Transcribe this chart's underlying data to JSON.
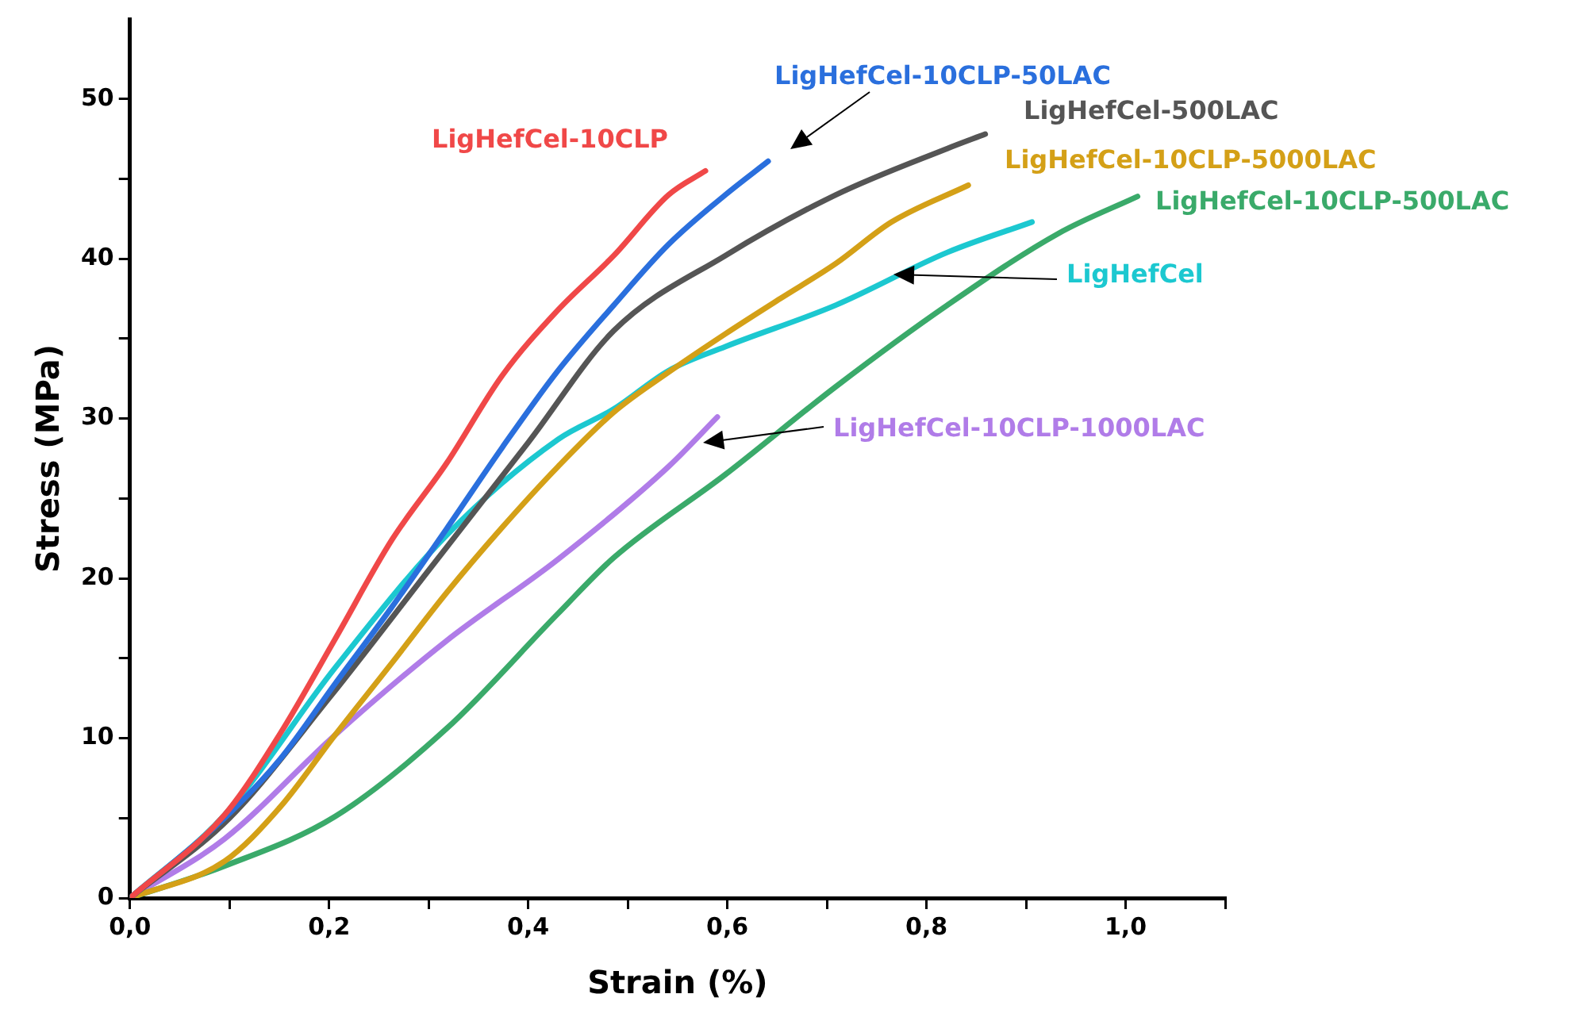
{
  "chart_data": {
    "type": "line",
    "xlabel": "Strain (%)",
    "ylabel": "Stress (MPa)",
    "xlim": [
      0,
      1.1
    ],
    "ylim": [
      0,
      55
    ],
    "xticks": [
      {
        "value": 0,
        "label": "0,0"
      },
      {
        "value": 0.1,
        "label": null
      },
      {
        "value": 0.2,
        "label": "0,2"
      },
      {
        "value": 0.3,
        "label": null
      },
      {
        "value": 0.4,
        "label": "0,4"
      },
      {
        "value": 0.5,
        "label": null
      },
      {
        "value": 0.6,
        "label": "0,6"
      },
      {
        "value": 0.7,
        "label": null
      },
      {
        "value": 0.8,
        "label": "0,8"
      },
      {
        "value": 0.9,
        "label": null
      },
      {
        "value": 1.0,
        "label": "1,0"
      },
      {
        "value": 1.1,
        "label": null
      }
    ],
    "yticks": [
      0,
      {
        "value": 5,
        "label": null
      },
      10,
      {
        "value": 15,
        "label": null
      },
      20,
      {
        "value": 25,
        "label": null
      },
      30,
      {
        "value": 35,
        "label": null
      },
      40,
      {
        "value": 45,
        "label": null
      },
      50
    ],
    "grid": false,
    "legend": false,
    "marker": "none",
    "line_style": "solid",
    "series": [
      {
        "name": "LigHefCel-10CLP",
        "color": "#f04848",
        "x": [
          0,
          0.095,
          0.151,
          0.206,
          0.263,
          0.318,
          0.374,
          0.43,
          0.486,
          0.541,
          0.578
        ],
        "values": [
          0,
          5.2,
          10.3,
          16.2,
          22.4,
          27.2,
          32.7,
          36.8,
          40.2,
          44.0,
          45.5
        ]
      },
      {
        "name": "LigHefCel-10CLP-50LAC",
        "color": "#2a6fdd",
        "x": [
          0,
          0.095,
          0.151,
          0.206,
          0.263,
          0.318,
          0.374,
          0.43,
          0.486,
          0.541,
          0.598,
          0.641
        ],
        "values": [
          0,
          5.0,
          8.7,
          13.4,
          18.2,
          23.1,
          28.2,
          33.0,
          37.1,
          40.9,
          44.0,
          46.1
        ]
      },
      {
        "name": "LigHefCel-500LAC",
        "color": "#555555",
        "x": [
          0,
          0.1,
          0.2,
          0.3,
          0.4,
          0.486,
          0.598,
          0.709,
          0.821,
          0.859
        ],
        "values": [
          0,
          5.0,
          12.5,
          20.5,
          28.5,
          35.5,
          40.2,
          44.0,
          46.9,
          47.8
        ]
      },
      {
        "name": "LigHefCel-10CLP-5000LAC",
        "color": "#d4a017",
        "x": [
          0,
          0.095,
          0.151,
          0.206,
          0.263,
          0.318,
          0.374,
          0.43,
          0.486,
          0.541,
          0.598,
          0.653,
          0.709,
          0.765,
          0.842
        ],
        "values": [
          0,
          2.3,
          5.7,
          10.2,
          14.7,
          19.1,
          23.2,
          27.0,
          30.4,
          32.9,
          35.3,
          37.5,
          39.7,
          42.3,
          44.6
        ]
      },
      {
        "name": "LigHefCel-10CLP-500LAC",
        "color": "#3aaa6a",
        "x": [
          0,
          0.095,
          0.206,
          0.318,
          0.43,
          0.486,
          0.598,
          0.709,
          0.821,
          0.933,
          1.012
        ],
        "values": [
          0,
          2.0,
          5.1,
          10.6,
          17.8,
          21.3,
          26.5,
          32.0,
          37.1,
          41.6,
          43.9
        ]
      },
      {
        "name": "LigHefCel",
        "color": "#1cc8d0",
        "x": [
          0,
          0.095,
          0.206,
          0.318,
          0.43,
          0.486,
          0.541,
          0.598,
          0.709,
          0.821,
          0.906
        ],
        "values": [
          0,
          5.2,
          14.4,
          22.7,
          28.7,
          30.6,
          33.0,
          34.5,
          37.1,
          40.4,
          42.3
        ]
      },
      {
        "name": "LigHefCel-10CLP-1000LAC",
        "color": "#b07ce8",
        "x": [
          0,
          0.095,
          0.206,
          0.318,
          0.43,
          0.541,
          0.59
        ],
        "values": [
          0,
          3.7,
          10.2,
          16.1,
          21.2,
          27.0,
          30.1
        ]
      }
    ]
  }
}
